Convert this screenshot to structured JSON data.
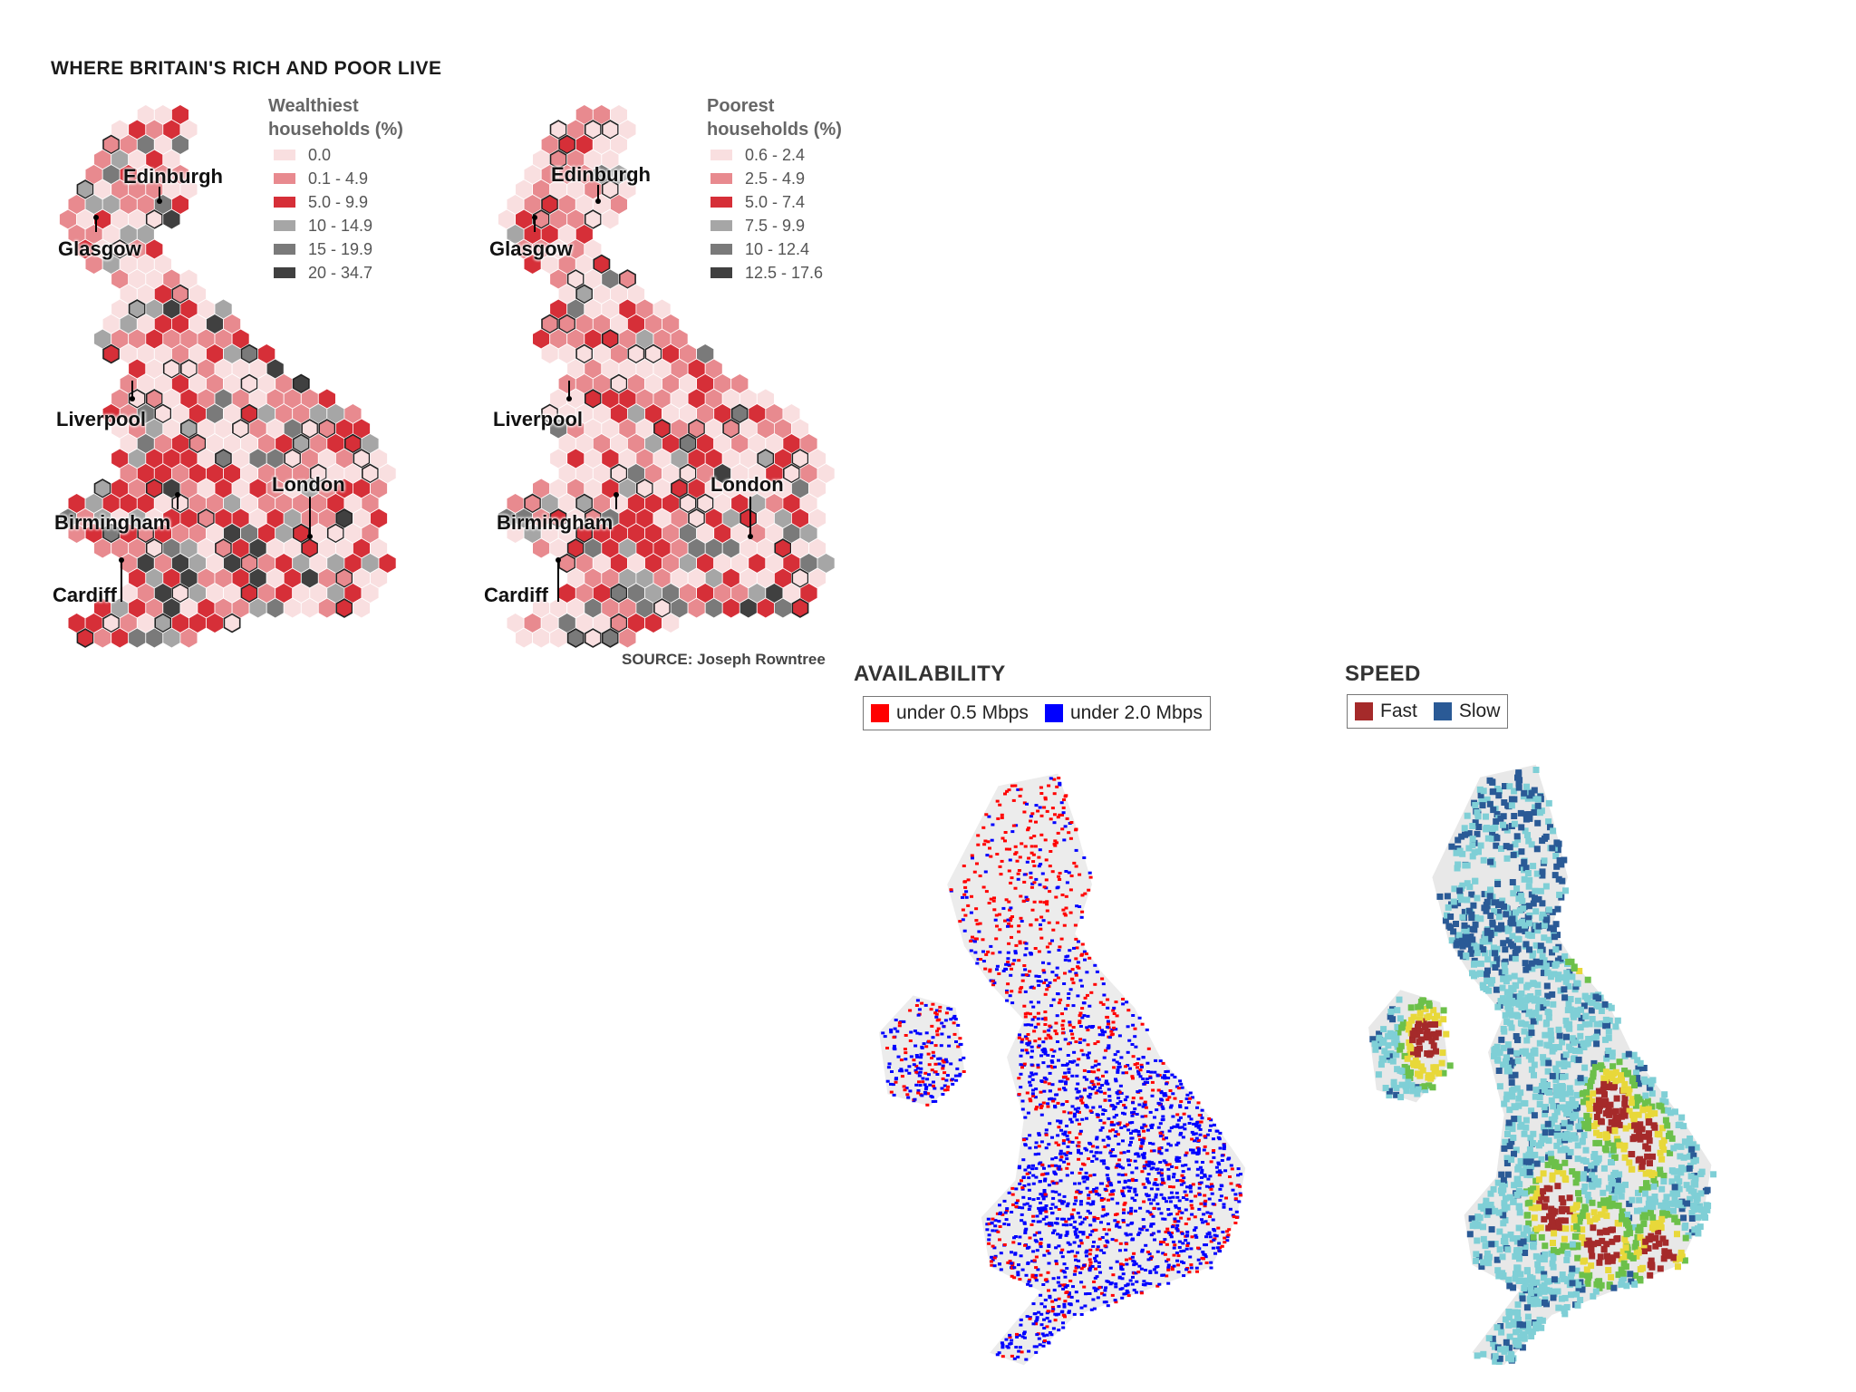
{
  "title": "WHERE BRITAIN'S RICH AND POOR LIVE",
  "wealth_map": {
    "legend_title_line1": "Wealthiest",
    "legend_title_line2": "households (%)",
    "legend": [
      {
        "label": "0.0",
        "color": "#f9dfe0"
      },
      {
        "label": "0.1 - 4.9",
        "color": "#e88a8f"
      },
      {
        "label": "5.0 - 9.9",
        "color": "#d62f38"
      },
      {
        "label": "10 - 14.9",
        "color": "#a6a6a6"
      },
      {
        "label": "15 - 19.9",
        "color": "#7a7a7a"
      },
      {
        "label": "20 - 34.7",
        "color": "#404040"
      }
    ],
    "cities": [
      "Edinburgh",
      "Glasgow",
      "Liverpool",
      "London",
      "Birmingham",
      "Cardiff"
    ]
  },
  "poverty_map": {
    "legend_title_line1": "Poorest",
    "legend_title_line2": "households (%)",
    "legend": [
      {
        "label": "0.6 - 2.4",
        "color": "#f9dfe0"
      },
      {
        "label": "2.5 - 4.9",
        "color": "#e88a8f"
      },
      {
        "label": "5.0 - 7.4",
        "color": "#d62f38"
      },
      {
        "label": "7.5 - 9.9",
        "color": "#a6a6a6"
      },
      {
        "label": "10 - 12.4",
        "color": "#7a7a7a"
      },
      {
        "label": "12.5 - 17.6",
        "color": "#404040"
      }
    ],
    "cities": [
      "Edinburgh",
      "Glasgow",
      "Liverpool",
      "London",
      "Birmingham",
      "Cardiff"
    ]
  },
  "source": "SOURCE: Joseph Rowntree",
  "availability": {
    "title": "AVAILABILITY",
    "legend": [
      {
        "label": "under 0.5 Mbps",
        "color": "#ff0000"
      },
      {
        "label": "under 2.0 Mbps",
        "color": "#0000ff"
      }
    ]
  },
  "speed": {
    "title": "SPEED",
    "legend": [
      {
        "label": "Fast",
        "color": "#a52a2a"
      },
      {
        "label": "Slow",
        "color": "#2a5a96"
      }
    ]
  }
}
